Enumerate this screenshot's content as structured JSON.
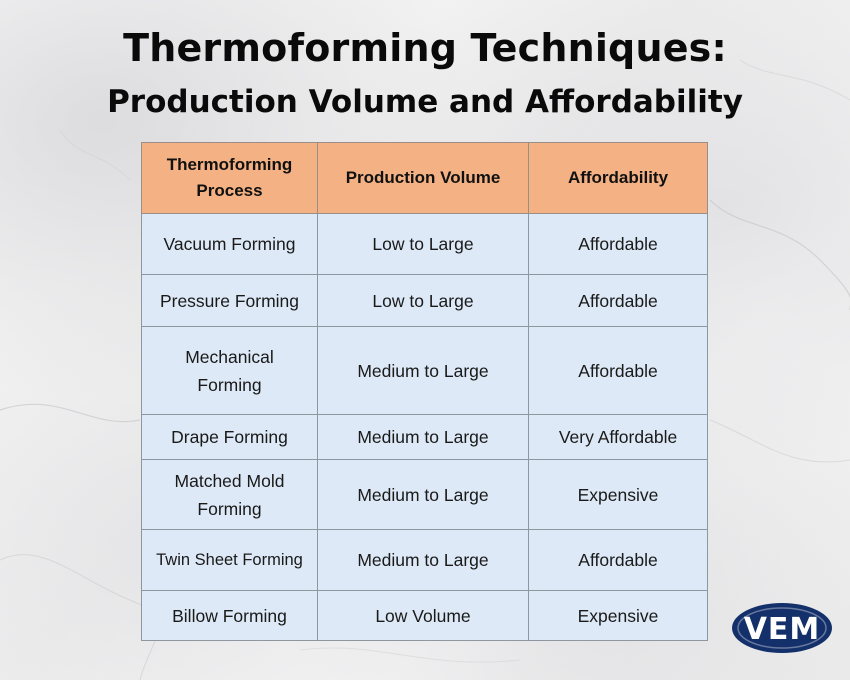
{
  "title_line1": "Thermoforming Techniques:",
  "title_line2": "Production Volume and Affordability",
  "table": {
    "headers": [
      "Thermoforming Process",
      "Production Volume",
      "Affordability"
    ],
    "rows": [
      [
        "Vacuum Forming",
        "Low to Large",
        "Affordable"
      ],
      [
        "Pressure Forming",
        "Low to Large",
        "Affordable"
      ],
      [
        "Mechanical Forming",
        "Medium to Large",
        "Affordable"
      ],
      [
        "Drape Forming",
        "Medium to Large",
        "Very Affordable"
      ],
      [
        "Matched Mold Forming",
        "Medium to Large",
        "Expensive"
      ],
      [
        "Twin Sheet Forming",
        "Medium to Large",
        "Affordable"
      ],
      [
        "Billow Forming",
        "Low Volume",
        "Expensive"
      ]
    ]
  },
  "logo": {
    "text": "VEM",
    "color": "#14306b"
  },
  "colors": {
    "header_bg": "#f4b183",
    "cell_bg": "#dde9f6"
  }
}
